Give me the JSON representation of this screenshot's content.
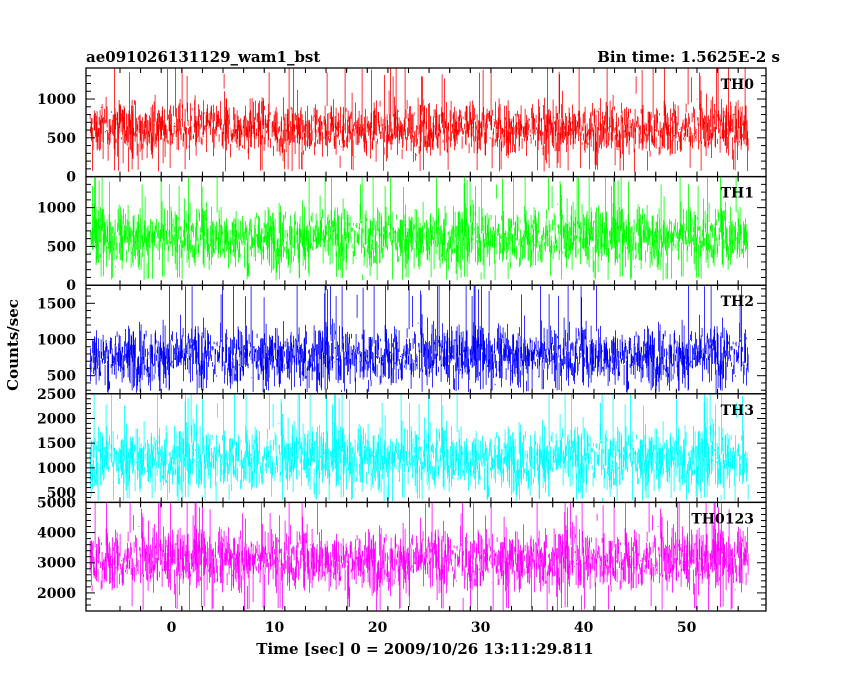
{
  "header": {
    "title": "ae091026131129_wam1_bst",
    "bin_time": "Bin time: 1.5625E-2 s"
  },
  "chart_data": {
    "type": "line",
    "xlabel": "Time [sec] 0 = 2009/10/26 13:11:29.811",
    "ylabel": "Counts/sec",
    "xlim": [
      -8.3,
      57.7
    ],
    "x_range": [
      -7.9,
      56.0
    ],
    "bin_time": 0.015625,
    "x_ticks": [
      0,
      10,
      20,
      30,
      40,
      50
    ],
    "panels": [
      {
        "name": "TH0",
        "color": "#ff0000",
        "ylim": [
          0,
          1400
        ],
        "y_ticks": [
          0,
          500,
          1000
        ],
        "base": 620,
        "noise": 180,
        "low": 60,
        "high": 1400
      },
      {
        "name": "TH1",
        "color": "#00ff00",
        "ylim": [
          0,
          1400
        ],
        "y_ticks": [
          0,
          500,
          1000
        ],
        "base": 620,
        "noise": 200,
        "low": 60,
        "high": 1400
      },
      {
        "name": "TH2",
        "color": "#0000ff",
        "ylim": [
          250,
          1750
        ],
        "y_ticks": [
          500,
          1000,
          1500
        ],
        "base": 780,
        "noise": 210,
        "low": 260,
        "high": 1750
      },
      {
        "name": "TH3",
        "color": "#00ffff",
        "ylim": [
          300,
          2500
        ],
        "y_ticks": [
          500,
          1000,
          1500,
          2000,
          2500
        ],
        "base": 1200,
        "noise": 330,
        "low": 320,
        "high": 2500
      },
      {
        "name": "TH0123",
        "color": "#ff00ff",
        "ylim": [
          1400,
          5000
        ],
        "y_ticks": [
          2000,
          3000,
          4000,
          5000
        ],
        "base": 3100,
        "noise": 520,
        "low": 1400,
        "high": 5000
      }
    ]
  }
}
